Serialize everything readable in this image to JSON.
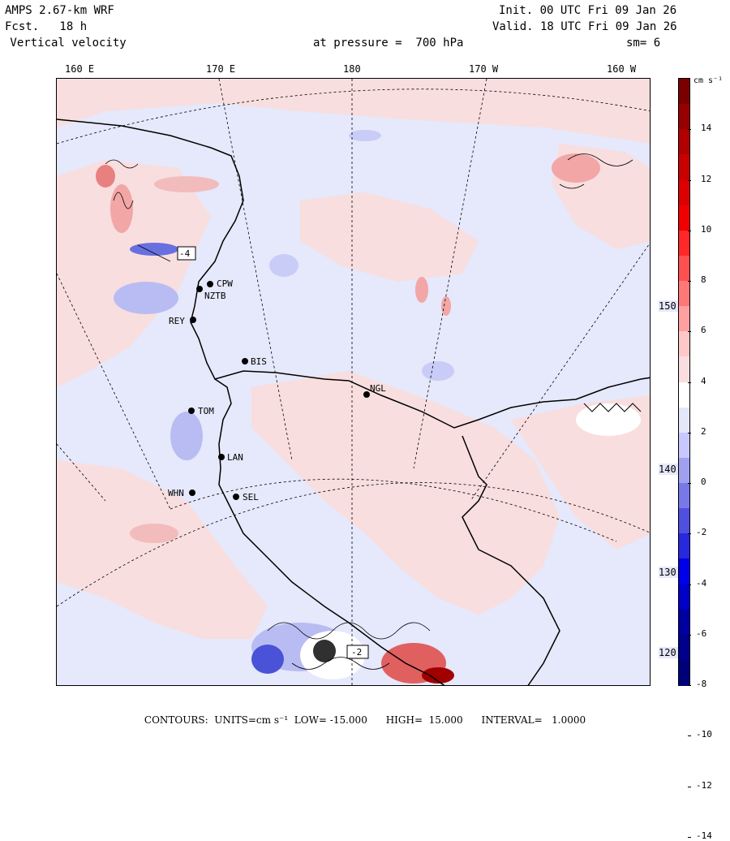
{
  "header": {
    "model": "AMPS 2.67-km WRF",
    "forecast": "Fcst.   18 h",
    "field": " Vertical velocity",
    "init": "Init. 00 UTC Fri 09 Jan 26",
    "valid": "Valid. 18 UTC Fri 09 Jan 26",
    "pressure": "at pressure =  700 hPa",
    "smooth": "sm= 6"
  },
  "longitude_labels": [
    "160 E",
    "170 E",
    "180",
    "170 W",
    "160 W"
  ],
  "latitude_labels": [
    "150 W",
    "140 W",
    "130 W",
    "120 W"
  ],
  "stations": [
    {
      "name": "CPW"
    },
    {
      "name": "NZTB"
    },
    {
      "name": "REY"
    },
    {
      "name": "BIS"
    },
    {
      "name": "NGL"
    },
    {
      "name": "TOM"
    },
    {
      "name": "LAN"
    },
    {
      "name": "WHN"
    },
    {
      "name": "SEL"
    }
  ],
  "contour_boxes": [
    "-4",
    "-2"
  ],
  "colorbar": {
    "units": "cm s⁻¹",
    "tick_labels": [
      "14",
      "12",
      "10",
      "8",
      "6",
      "4",
      "2",
      "0",
      "-2",
      "-4",
      "-6",
      "-8",
      "-10",
      "-12",
      "-14"
    ],
    "colors": [
      "#7a0000",
      "#960000",
      "#b00000",
      "#c80000",
      "#dc0000",
      "#f00000",
      "#ff2828",
      "#ff5050",
      "#ff7878",
      "#ffa0a0",
      "#ffc8c8",
      "#f8dede",
      "#ffffff",
      "#e4e6fa",
      "#c8c8ff",
      "#a0a0f0",
      "#7878e8",
      "#5050e0",
      "#2828dc",
      "#0000e8",
      "#0000c8",
      "#0000a0",
      "#00008c",
      "#000078"
    ]
  },
  "footer": "CONTOURS:  UNITS=cm s⁻¹  LOW= -15.000      HIGH=  15.000      INTERVAL=   1.0000"
}
